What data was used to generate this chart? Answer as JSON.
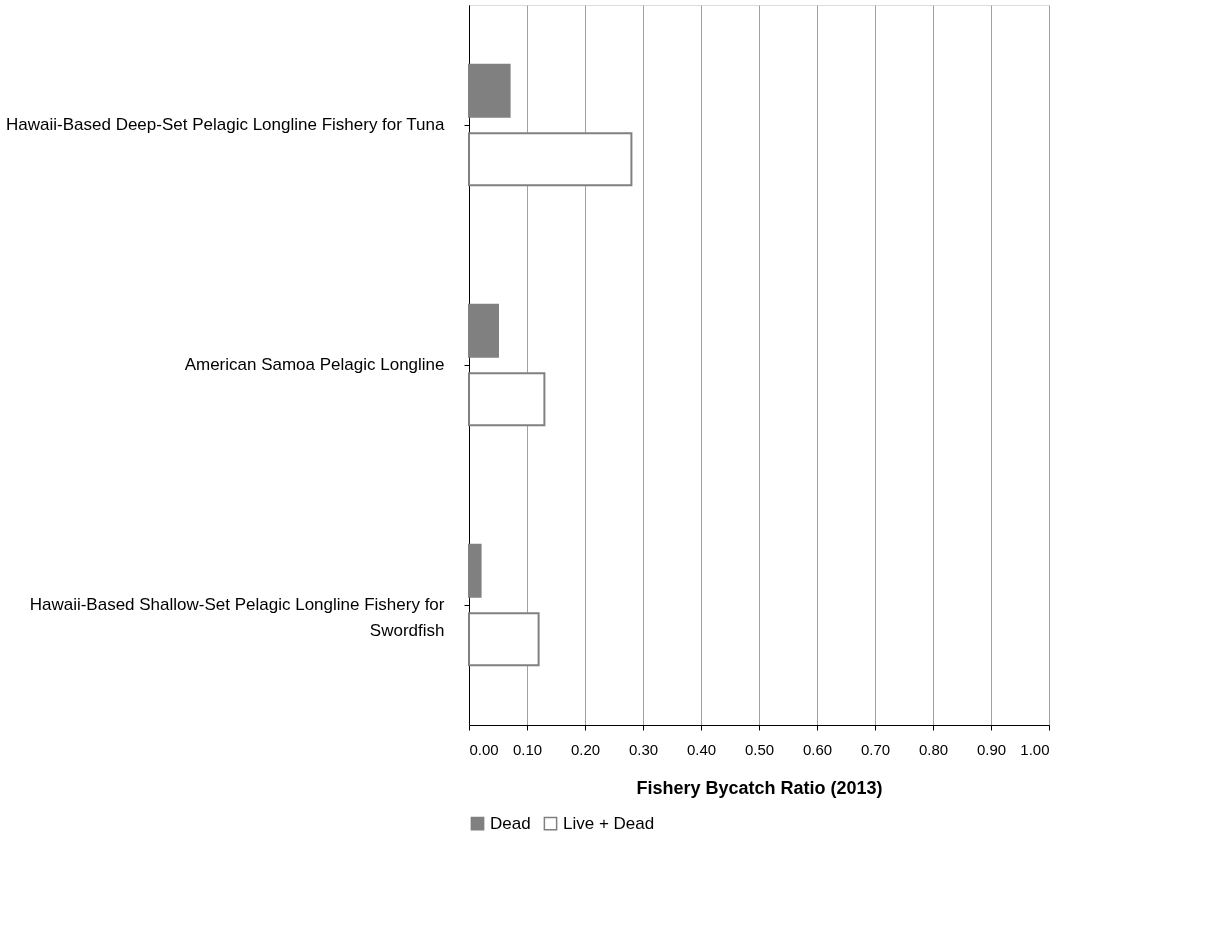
{
  "chart_data": {
    "type": "bar",
    "orientation": "horizontal",
    "xlabel": "Fishery Bycatch Ratio (2013)",
    "categories": [
      "Hawaii-Based Deep-Set Pelagic Longline Fishery for Tuna",
      "American Samoa Pelagic Longline",
      "Hawaii-Based Shallow-Set Pelagic Longline Fishery for Swordfish"
    ],
    "series": [
      {
        "name": "Dead",
        "color": "#808080",
        "values": [
          0.07,
          0.05,
          0.02
        ]
      },
      {
        "name": "Live +  Dead",
        "color": "#808080",
        "values": [
          0.28,
          0.13,
          0.12
        ]
      }
    ],
    "xlim": [
      0,
      1
    ],
    "xticks": [
      {
        "value": 0,
        "label": "0.00"
      },
      {
        "value": 0.1,
        "label": "0.10"
      },
      {
        "value": 0.2,
        "label": "0.20"
      },
      {
        "value": 0.3,
        "label": "0.30"
      },
      {
        "value": 0.4,
        "label": "0.40"
      },
      {
        "value": 0.5,
        "label": "0.50"
      },
      {
        "value": 0.6,
        "label": "0.60"
      },
      {
        "value": 0.7,
        "label": "0.70"
      },
      {
        "value": 0.8,
        "label": "0.80"
      },
      {
        "value": 0.9,
        "label": "0.90"
      },
      {
        "value": 1,
        "label": "1.00"
      }
    ],
    "grid": "x",
    "legend": "bottom"
  }
}
